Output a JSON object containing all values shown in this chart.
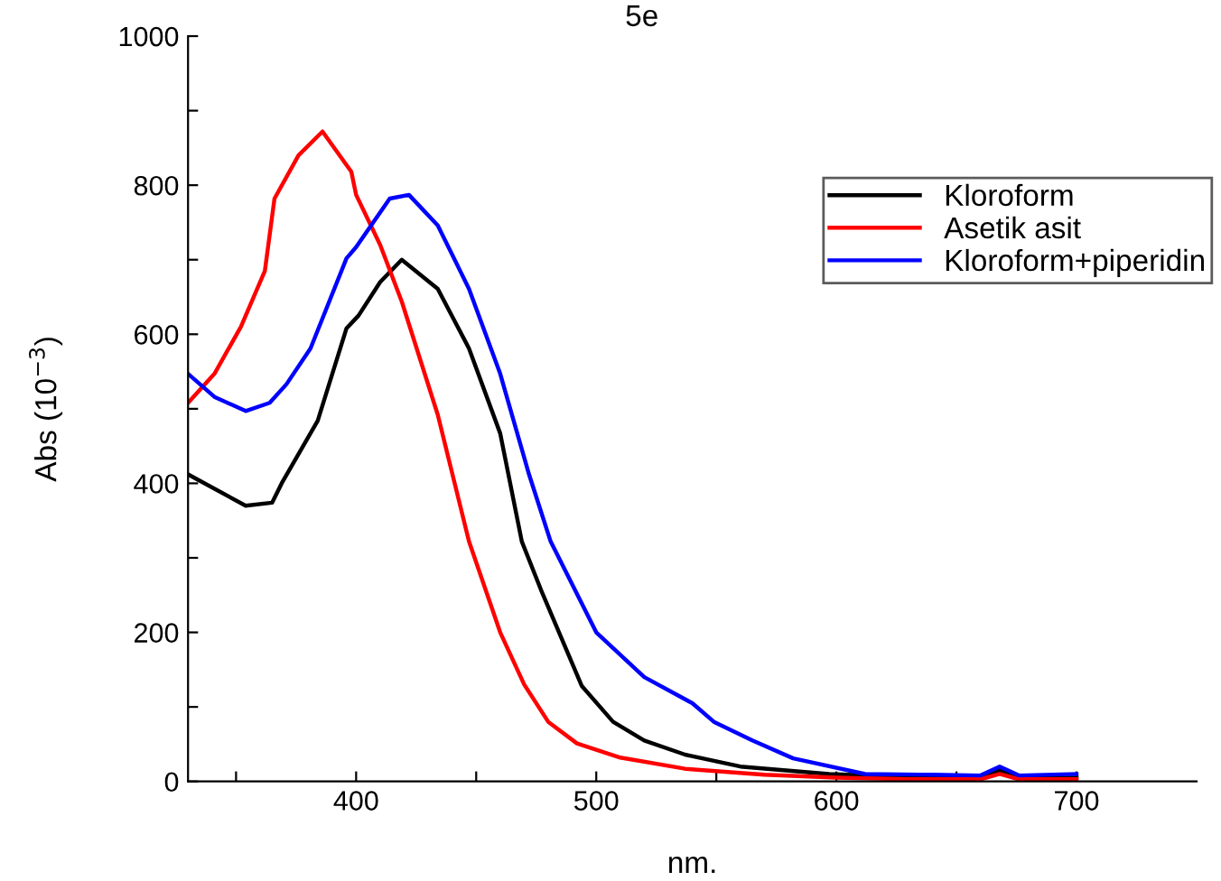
{
  "chart_data": {
    "type": "line",
    "title": "5e",
    "xlabel": "nm.",
    "ylabel": "Abs (10$^{−3}$)",
    "xlim": [
      330,
      750
    ],
    "ylim": [
      0,
      1000
    ],
    "xticks": [
      {
        "value": 350,
        "label": null
      },
      400,
      {
        "value": 450,
        "label": null
      },
      500,
      {
        "value": 550,
        "label": null
      },
      600,
      {
        "value": 650,
        "label": null
      },
      700
    ],
    "yticks": [
      0,
      {
        "value": 100,
        "label": null
      },
      200,
      {
        "value": 300,
        "label": null
      },
      400,
      {
        "value": 500,
        "label": null
      },
      600,
      {
        "value": 700,
        "label": null
      },
      800,
      {
        "value": 900,
        "label": null
      },
      1000
    ],
    "grid": false,
    "legend": "top right",
    "marker": "none",
    "line_style": "solid",
    "series": [
      {
        "name": "Kloroform",
        "color": "#000000",
        "x": [
          330,
          354,
          365,
          369,
          384,
          396,
          401,
          410,
          419,
          434,
          447,
          460,
          469,
          477,
          494,
          507,
          520,
          537,
          560,
          597,
          630,
          660,
          668,
          676,
          700
        ],
        "values": [
          412,
          370,
          374,
          400,
          484,
          608,
          625,
          670,
          700,
          661,
          581,
          467,
          322,
          257,
          128,
          80,
          55,
          36,
          20,
          10,
          6,
          5,
          15,
          5,
          5
        ]
      },
      {
        "name": "Asetik asit",
        "color": "#ff0000",
        "x": [
          330,
          341,
          352,
          362,
          366,
          376,
          386,
          398,
          400,
          410,
          419,
          434,
          447,
          460,
          470,
          480,
          492,
          510,
          537,
          570,
          600,
          630,
          660,
          668,
          676,
          700
        ],
        "values": [
          508,
          547,
          610,
          685,
          782,
          840,
          872,
          818,
          787,
          720,
          644,
          492,
          322,
          200,
          130,
          80,
          51,
          32,
          17,
          9,
          5,
          3,
          3,
          10,
          3,
          3
        ]
      },
      {
        "name": "Kloroform+piperidin",
        "color": "#0000ff",
        "x": [
          330,
          341,
          354,
          364,
          371,
          381,
          396,
          400,
          414,
          422,
          434,
          447,
          460,
          472,
          481,
          500,
          520,
          540,
          549,
          565,
          582,
          612,
          640,
          660,
          668,
          676,
          700
        ],
        "values": [
          547,
          516,
          497,
          508,
          533,
          581,
          702,
          717,
          782,
          787,
          746,
          661,
          547,
          412,
          322,
          200,
          140,
          105,
          80,
          55,
          31,
          10,
          9,
          8,
          20,
          8,
          10
        ]
      }
    ]
  }
}
